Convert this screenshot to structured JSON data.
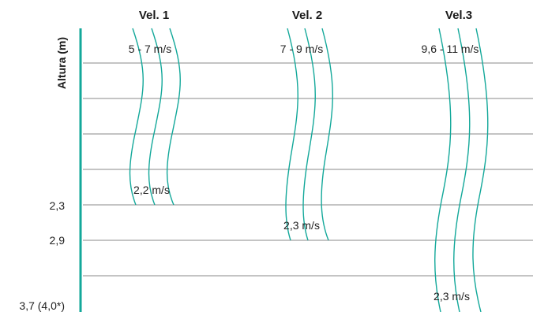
{
  "diagram": {
    "axis_title": "Altura (m)",
    "colors": {
      "accent": "#13a89a",
      "grid": "#8a8a8a",
      "text": "#222222"
    },
    "height_ticks": [
      "2,3",
      "2,9",
      "3,7 (4,0*)"
    ],
    "columns": [
      {
        "title": "Vel. 1",
        "top_speed": "5 - 7 m/s",
        "bottom_speed": "2,2 m/s"
      },
      {
        "title": "Vel. 2",
        "top_speed": "7 - 9 m/s",
        "bottom_speed": "2,3 m/s"
      },
      {
        "title": "Vel.3",
        "top_speed": "9,6 - 11 m/s",
        "bottom_speed": "2,3 m/s"
      }
    ]
  }
}
